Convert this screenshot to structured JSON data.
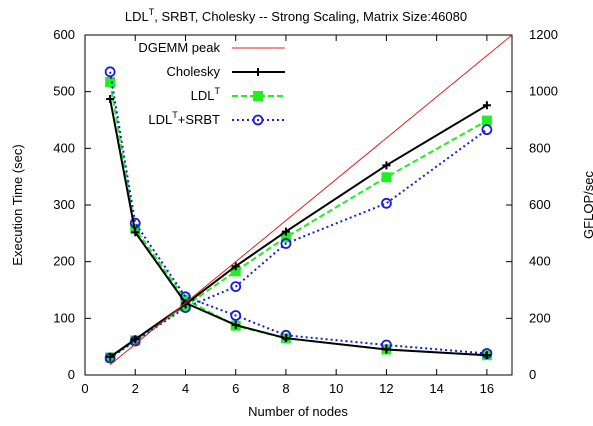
{
  "chart_data": {
    "type": "line",
    "title": "LDL^T, SRBT, Cholesky -- Strong Scaling, Matrix Size:46080",
    "title_parts": {
      "a": "LDL",
      "sup": "T",
      "b": ", SRBT, Cholesky  --  Strong Scaling, Matrix Size:46080"
    },
    "xlabel": "Number of nodes",
    "ylabel": "Execution Time (sec)",
    "y2label": "GFLOP/sec",
    "xlim": [
      0,
      17
    ],
    "ylim": [
      0,
      600
    ],
    "y2lim": [
      0,
      1200
    ],
    "x_ticks": [
      0,
      2,
      4,
      6,
      8,
      10,
      12,
      14,
      16
    ],
    "y_ticks": [
      0,
      100,
      200,
      300,
      400,
      500,
      600
    ],
    "y2_ticks": [
      0,
      200,
      400,
      600,
      800,
      1000,
      1200
    ],
    "legend_position": "top-center",
    "grid": false,
    "legend": [
      {
        "key": "dgemm",
        "label": "DGEMM peak"
      },
      {
        "key": "chol",
        "label": "Cholesky"
      },
      {
        "key": "ldlt",
        "label": "LDL",
        "sup": "T"
      },
      {
        "key": "srbt",
        "label": "LDL",
        "sup": "T",
        "suffix": "+SRBT"
      }
    ],
    "series": [
      {
        "key": "dgemm",
        "name": "DGEMM peak",
        "axis": "y2",
        "color": "#e02020",
        "marker": "none",
        "dash": "",
        "x": [
          1,
          17
        ],
        "y": [
          36,
          1200
        ]
      },
      {
        "key": "chol_time",
        "name": "Cholesky",
        "axis": "y",
        "color": "#000000",
        "marker": "plus",
        "dash": "",
        "x": [
          1,
          2,
          4,
          6,
          8,
          12,
          16
        ],
        "y": [
          487,
          252,
          127,
          88,
          65,
          45,
          35
        ]
      },
      {
        "key": "chol_gflop",
        "name": "Cholesky",
        "axis": "y2",
        "color": "#000000",
        "marker": "plus",
        "dash": "",
        "x": [
          1,
          2,
          4,
          6,
          8,
          12,
          16
        ],
        "y": [
          64,
          126,
          250,
          384,
          506,
          740,
          952
        ]
      },
      {
        "key": "ldlt_time",
        "name": "LDL^T",
        "axis": "y",
        "color": "#22ee22",
        "marker": "square",
        "dash": "6,3",
        "x": [
          1,
          2,
          4,
          6,
          8,
          12,
          16
        ],
        "y": [
          517,
          258,
          133,
          87,
          65,
          45,
          35
        ]
      },
      {
        "key": "ldlt_gflop",
        "name": "LDL^T",
        "axis": "y2",
        "color": "#22ee22",
        "marker": "square",
        "dash": "6,3",
        "x": [
          1,
          2,
          4,
          6,
          8,
          12,
          16
        ],
        "y": [
          62,
          122,
          244,
          366,
          486,
          698,
          898
        ]
      },
      {
        "key": "srbt_time",
        "name": "LDL^T+SRBT",
        "axis": "y",
        "color": "#1a1ae0",
        "marker": "circle",
        "dash": "2,3",
        "x": [
          1,
          2,
          4,
          6,
          8,
          12,
          16
        ],
        "y": [
          535,
          268,
          138,
          105,
          70,
          53,
          38
        ]
      },
      {
        "key": "srbt_gflop",
        "name": "LDL^T+SRBT",
        "axis": "y2",
        "color": "#1a1ae0",
        "marker": "circle",
        "dash": "2,3",
        "x": [
          1,
          2,
          4,
          6,
          8,
          12,
          16
        ],
        "y": [
          60,
          120,
          238,
          312,
          464,
          606,
          866
        ]
      }
    ]
  }
}
